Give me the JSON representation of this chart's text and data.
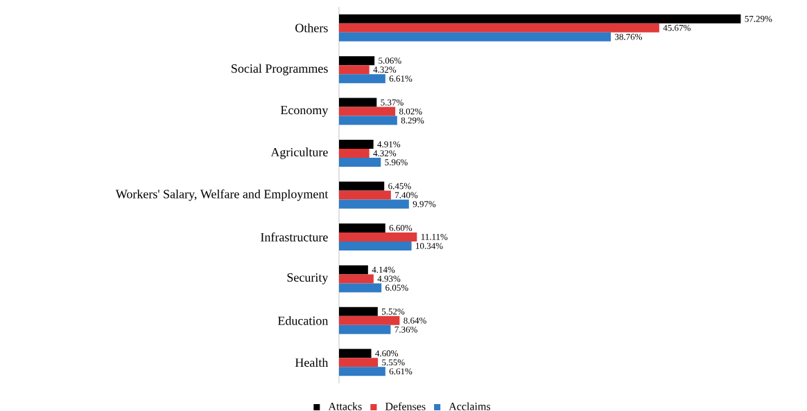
{
  "chart_data": {
    "type": "bar",
    "orientation": "horizontal",
    "legend": "bottom",
    "tick_labels": "y",
    "categories": [
      "Others",
      "Social Programmes",
      "Economy",
      "Agriculture",
      "Workers' Salary, Welfare and Employment",
      "Infrastructure",
      "Security",
      "Education",
      "Health"
    ],
    "series": [
      {
        "name": "Attacks",
        "color": "#000000",
        "values": [
          57.29,
          5.06,
          5.37,
          4.91,
          6.45,
          6.6,
          4.14,
          5.52,
          4.6
        ],
        "value_labels": [
          "57.29%",
          "5.06%",
          "5.37%",
          "4.91%",
          "6.45%",
          "6.60%",
          "4.14%",
          "5.52%",
          "4.60%"
        ]
      },
      {
        "name": "Defenses",
        "color": "#e03a3a",
        "values": [
          45.67,
          4.32,
          8.02,
          4.32,
          7.4,
          11.11,
          4.93,
          8.64,
          5.55
        ],
        "value_labels": [
          "45.67%",
          "4.32%",
          "8.02%",
          "4.32%",
          "7.40%",
          "11.11%",
          "4.93%",
          "8.64%",
          "5.55%"
        ]
      },
      {
        "name": "Acclaims",
        "color": "#2f7bc6",
        "values": [
          38.76,
          6.61,
          8.29,
          5.96,
          9.97,
          10.34,
          6.05,
          7.36,
          6.61
        ],
        "value_labels": [
          "38.76%",
          "6.61%",
          "8.29%",
          "5.96%",
          "9.97%",
          "10.34%",
          "6.05%",
          "7.36%",
          "6.61%"
        ]
      }
    ]
  }
}
